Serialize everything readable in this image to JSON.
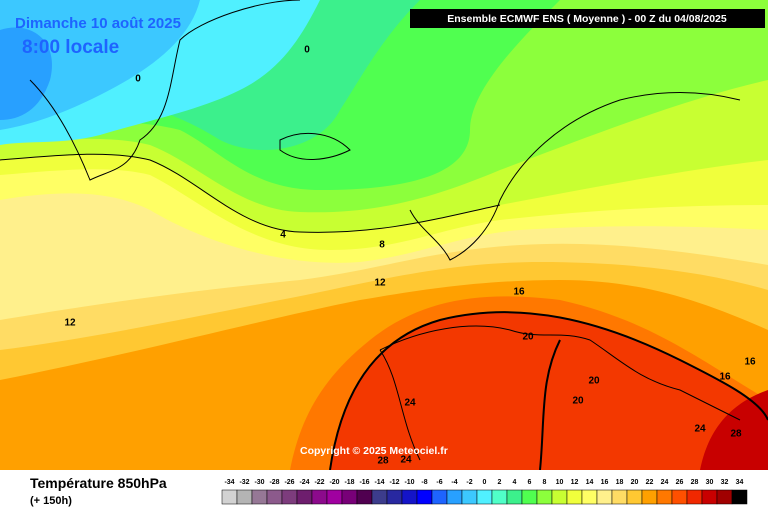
{
  "date": "Dimanche 10 août 2025",
  "time": "8:00 locale",
  "header": "Ensemble ECMWF ENS  ( Moyenne )  -  00 Z du 04/08/2025",
  "copyright": "Copyright © 2025 Meteociel.fr",
  "field": "Température 850hPa",
  "lead": "(+ 150h)",
  "contour_labels": [
    0,
    0,
    4,
    8,
    12,
    12,
    16,
    16,
    16,
    20,
    20,
    20,
    24,
    24,
    24,
    28,
    28
  ],
  "scale": {
    "values": [
      -34,
      -32,
      -30,
      -28,
      -26,
      -24,
      -22,
      -20,
      -18,
      -16,
      -14,
      -12,
      -10,
      -8,
      -6,
      -4,
      -2,
      0,
      2,
      4,
      6,
      8,
      10,
      12,
      14,
      16,
      18,
      20,
      22,
      24,
      26,
      28,
      30,
      32,
      34
    ],
    "colors": [
      "#d2d2d2",
      "#b4b4b4",
      "#967896",
      "#8c5a8c",
      "#7d3c7d",
      "#6e1e6e",
      "#8c0a8c",
      "#a000a0",
      "#780078",
      "#500050",
      "#3c3c8c",
      "#2828a0",
      "#1414c8",
      "#0000ff",
      "#1e64ff",
      "#28a0ff",
      "#3cc8ff",
      "#50f0ff",
      "#50ffc8",
      "#3cf08c",
      "#50ff50",
      "#8cff3c",
      "#c8ff32",
      "#f0ff3c",
      "#ffff64",
      "#fff08c",
      "#ffdc64",
      "#ffc832",
      "#ffa000",
      "#ff7800",
      "#ff5000",
      "#f02800",
      "#c80000",
      "#a00000",
      "#000000"
    ]
  }
}
